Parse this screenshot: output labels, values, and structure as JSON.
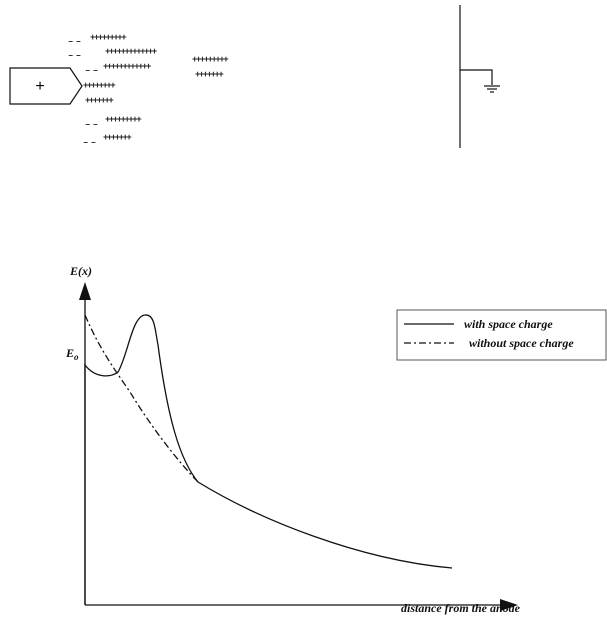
{
  "anode": {
    "label": "+"
  },
  "charges": [
    "– –",
    "+++++++++",
    "– –",
    "+++++++++++++",
    "+++++++++",
    "– –",
    "++++++++++++",
    "+++++++",
    "++++++++",
    "+++++++",
    "– –",
    "+++++++++",
    "– –",
    "+++++++"
  ],
  "plot": {
    "y_label": "E(x)",
    "e0_label": "E",
    "e0_sub": "o",
    "x_label": "distance from the anode",
    "legend": [
      "with space charge",
      "without space charge"
    ]
  }
}
